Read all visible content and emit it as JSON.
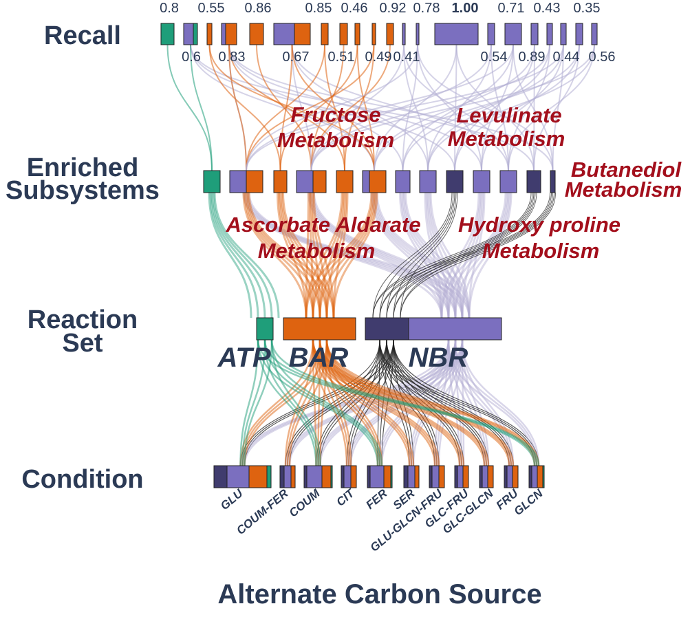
{
  "colors": {
    "atp": "#1f9e7a",
    "bar": "#de6310",
    "nbr": "#7b6fbf",
    "nbr_dark": "#403c6e",
    "row_text": "#2b3a55",
    "subsystem_text": "#a30f1c"
  },
  "rows": {
    "recall": "Recall",
    "enriched_line1": "Enriched",
    "enriched_line2": "Subsystems",
    "reaction_line1": "Reaction",
    "reaction_line2": "Set",
    "condition": "Condition"
  },
  "recall_values_top": [
    "0.8",
    "0.55",
    "0.86",
    "0.85",
    "0.46",
    "0.92",
    "0.78",
    "1.00",
    "0.71",
    "0.43",
    "0.35"
  ],
  "recall_values_bottom": [
    "0.6",
    "0.83",
    "0.67",
    "0.51",
    "0.49",
    "0.41",
    "0.54",
    "0.89",
    "0.44",
    "0.56"
  ],
  "subsystems": {
    "fructose_1": "Fructose",
    "fructose_2": "Metabolism",
    "levulinate_1": "Levulinate",
    "levulinate_2": "Metabolism",
    "butanediol_1": "Butanediol",
    "butanediol_2": "Metabolism",
    "ascorbate_1": "Ascorbate Aldarate",
    "ascorbate_2": "Metabolism",
    "hydroxy_1": "Hydroxy proline",
    "hydroxy_2": "Metabolism"
  },
  "reaction_sets": [
    "ATP",
    "BAR",
    "NBR"
  ],
  "conditions": [
    "GLU",
    "COUM-FER",
    "COUM",
    "CIT",
    "FER",
    "SER",
    "GLU-GLCN-FRU",
    "GLC-FRU",
    "GLC-GLCN",
    "FRU",
    "GLCN"
  ],
  "footer": "Alternate Carbon Source"
}
